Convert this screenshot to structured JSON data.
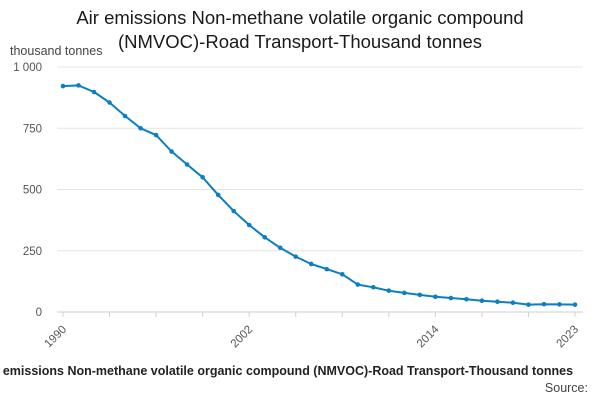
{
  "chart_data": {
    "type": "line",
    "title_lines": [
      "Air emissions Non-methane volatile organic compound",
      "(NMVOC)-Road Transport-Thousand tonnes"
    ],
    "ylabel": "thousand tonnes",
    "xlabel": "",
    "y_ticks": [
      0,
      250,
      500,
      750,
      1000
    ],
    "y_tick_labels": [
      "0",
      "250",
      "500",
      "750",
      "1 000"
    ],
    "ylim": [
      0,
      1000
    ],
    "xlim": [
      1990,
      2023
    ],
    "x_tick_labels": [
      {
        "year": 1990,
        "label": "1990"
      },
      {
        "year": 2002,
        "label": "2002"
      },
      {
        "year": 2014,
        "label": "2014"
      },
      {
        "year": 2023,
        "label": "2023"
      }
    ],
    "grid": true,
    "series": [
      {
        "name": "Air emissions Non-methane volatile organic compound (NMVOC)-Road Transport-Thousand tonnes",
        "color": "#0b7fc1",
        "x": [
          1990,
          1991,
          1992,
          1993,
          1994,
          1995,
          1996,
          1997,
          1998,
          1999,
          2000,
          2001,
          2002,
          2003,
          2004,
          2005,
          2006,
          2007,
          2008,
          2009,
          2010,
          2011,
          2012,
          2013,
          2014,
          2015,
          2016,
          2017,
          2018,
          2019,
          2020,
          2021,
          2022,
          2023
        ],
        "values": [
          922,
          925,
          898,
          855,
          800,
          750,
          722,
          655,
          602,
          550,
          478,
          412,
          355,
          305,
          262,
          226,
          196,
          175,
          154,
          112,
          101,
          87,
          78,
          70,
          62,
          57,
          52,
          46,
          42,
          38,
          30,
          32,
          31,
          30
        ]
      }
    ]
  },
  "footer": {
    "series_label": "Air emissions Non-methane volatile organic compound (NMVOC)-Road Transport-Thousand tonnes",
    "source_label": "Source:"
  }
}
